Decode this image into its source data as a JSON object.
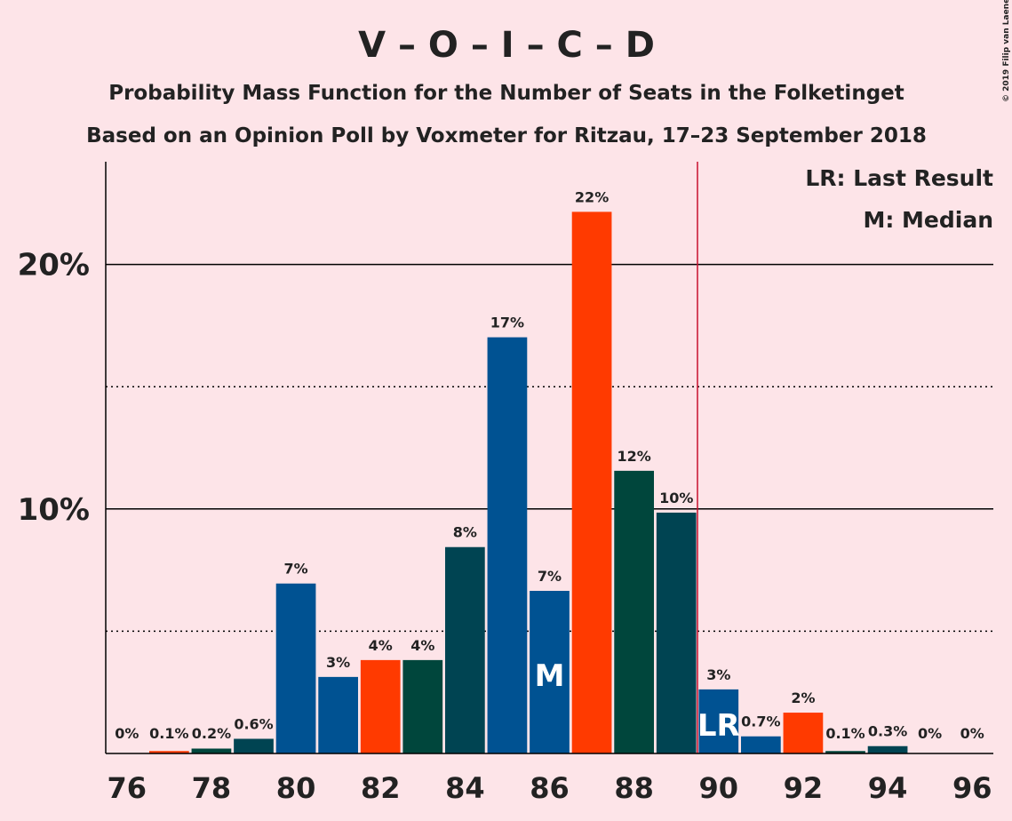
{
  "chart_data": {
    "type": "bar",
    "title": "V – O – I – C – D",
    "subtitle": "Probability Mass Function for the Number of Seats in the Folketinget",
    "subtitle2": "Based on an Opinion Poll by Voxmeter for Ritzau, 17–23 September 2018",
    "copyright": "© 2019 Filip van Laenen",
    "x": [
      76,
      77,
      78,
      79,
      80,
      81,
      82,
      83,
      84,
      85,
      86,
      87,
      88,
      89,
      90,
      91,
      92,
      93,
      94,
      95,
      96
    ],
    "values": [
      0,
      0.1,
      0.2,
      0.6,
      6.95,
      3.13,
      3.82,
      3.82,
      8.44,
      17.02,
      6.65,
      22.15,
      11.56,
      9.85,
      2.62,
      0.7,
      1.67,
      0.1,
      0.3,
      0,
      0
    ],
    "value_labels": [
      "0%",
      "0.1%",
      "0.2%",
      "0.6%",
      "7%",
      "3%",
      "4%",
      "4%",
      "8%",
      "17%",
      "7%",
      "22%",
      "12%",
      "10%",
      "3%",
      "0.7%",
      "2%",
      "0.1%",
      "0.3%",
      "0%",
      "0%"
    ],
    "colors": [
      "#005292",
      "#ff3a00",
      "#00463c",
      "#004452",
      "#005292",
      "#005292",
      "#ff3a00",
      "#00463c",
      "#004452",
      "#005292",
      "#005292",
      "#ff3a00",
      "#00463c",
      "#004452",
      "#005292",
      "#005292",
      "#ff3a00",
      "#00463c",
      "#004452",
      "#005292",
      "#005292"
    ],
    "xlim": [
      75.5,
      96.5
    ],
    "xticks": [
      76,
      78,
      80,
      82,
      84,
      86,
      88,
      90,
      92,
      94,
      96
    ],
    "ylim": [
      0,
      24.2
    ],
    "yticks": [
      {
        "value": 10,
        "label": "10%"
      },
      {
        "value": 20,
        "label": "20%"
      }
    ],
    "minor_yticks": [
      5,
      15
    ],
    "median": {
      "x": 86,
      "label": "M"
    },
    "last_result": {
      "x": 90,
      "label": "LR",
      "line_color": "#c8102e"
    },
    "legend": [
      "LR: Last Result",
      "M: Median"
    ]
  }
}
